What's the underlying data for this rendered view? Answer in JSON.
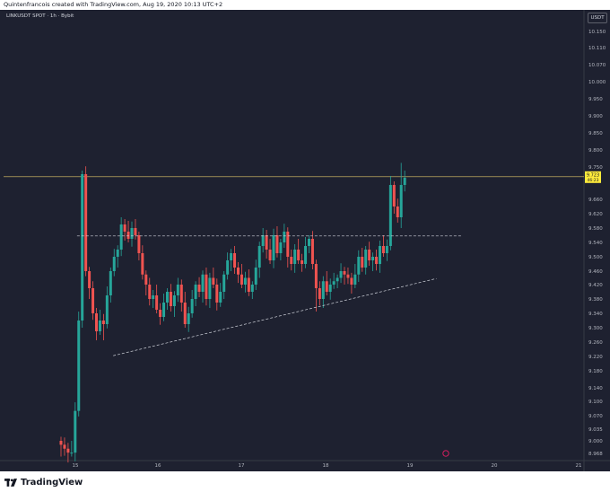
{
  "header": {
    "caption": "Quintenfrancois created with TradingView.com, Aug 19, 2020 10:13 UTC+2"
  },
  "symbol": {
    "label": "LINKUSDT SPOT · 1h · Bybit"
  },
  "price_axis": {
    "currency": "USDT"
  },
  "current_price": {
    "value": "9.723",
    "countdown": "46:23"
  },
  "footer": {
    "brand": "TradingView"
  },
  "colors": {
    "background": "#1e2130",
    "up": "#26a69a",
    "down": "#ef5350",
    "price_tag": "#ffeb3b",
    "level_line": "#d1d4dc"
  },
  "chart_data": {
    "type": "candlestick",
    "title": "",
    "xlabel": "",
    "ylabel": "",
    "ylim": [
      8.96,
      10.2
    ],
    "y_ticks": [
      "10.150",
      "10.110",
      "10.070",
      "10.000",
      "9.950",
      "9.900",
      "9.850",
      "9.800",
      "9.750",
      "9.660",
      "9.620",
      "9.580",
      "9.540",
      "9.500",
      "9.460",
      "9.420",
      "9.380",
      "9.340",
      "9.300",
      "9.260",
      "9.220",
      "9.180",
      "9.140",
      "9.100",
      "9.070",
      "9.035",
      "9.000",
      "8.968"
    ],
    "x_ticks": [
      {
        "label": "15",
        "pos": 15
      },
      {
        "label": "16",
        "pos": 16
      },
      {
        "label": "17",
        "pos": 17
      },
      {
        "label": "18",
        "pos": 18
      },
      {
        "label": "19",
        "pos": 19
      },
      {
        "label": "20",
        "pos": 20
      },
      {
        "label": "21",
        "pos": 21
      }
    ],
    "closes": [
      8.99,
      8.98,
      8.97,
      8.97,
      9.08,
      9.32,
      9.73,
      9.46,
      9.41,
      9.34,
      9.29,
      9.32,
      9.31,
      9.39,
      9.46,
      9.5,
      9.52,
      9.59,
      9.57,
      9.55,
      9.58,
      9.56,
      9.51,
      9.45,
      9.42,
      9.38,
      9.39,
      9.35,
      9.33,
      9.37,
      9.4,
      9.36,
      9.39,
      9.42,
      9.37,
      9.31,
      9.34,
      9.38,
      9.42,
      9.4,
      9.45,
      9.38,
      9.44,
      9.42,
      9.37,
      9.4,
      9.45,
      9.49,
      9.51,
      9.47,
      9.45,
      9.42,
      9.44,
      9.4,
      9.42,
      9.47,
      9.53,
      9.56,
      9.52,
      9.49,
      9.56,
      9.51,
      9.54,
      9.57,
      9.5,
      9.48,
      9.52,
      9.49,
      9.48,
      9.53,
      9.55,
      9.48,
      9.41,
      9.38,
      9.43,
      9.4,
      9.42,
      9.43,
      9.44,
      9.46,
      9.45,
      9.44,
      9.42,
      9.45,
      9.5,
      9.47,
      9.52,
      9.49,
      9.5,
      9.48,
      9.53,
      9.51,
      9.53,
      9.7,
      9.64,
      9.61,
      9.7,
      9.72
    ],
    "levels": [
      {
        "style": "dashed",
        "y": [
          9.558,
          9.558
        ],
        "x": [
          15.02,
          19.6
        ]
      },
      {
        "style": "dashed",
        "y": [
          9.222,
          9.438
        ],
        "x": [
          15.45,
          19.3
        ]
      }
    ],
    "last_price": 9.723
  }
}
